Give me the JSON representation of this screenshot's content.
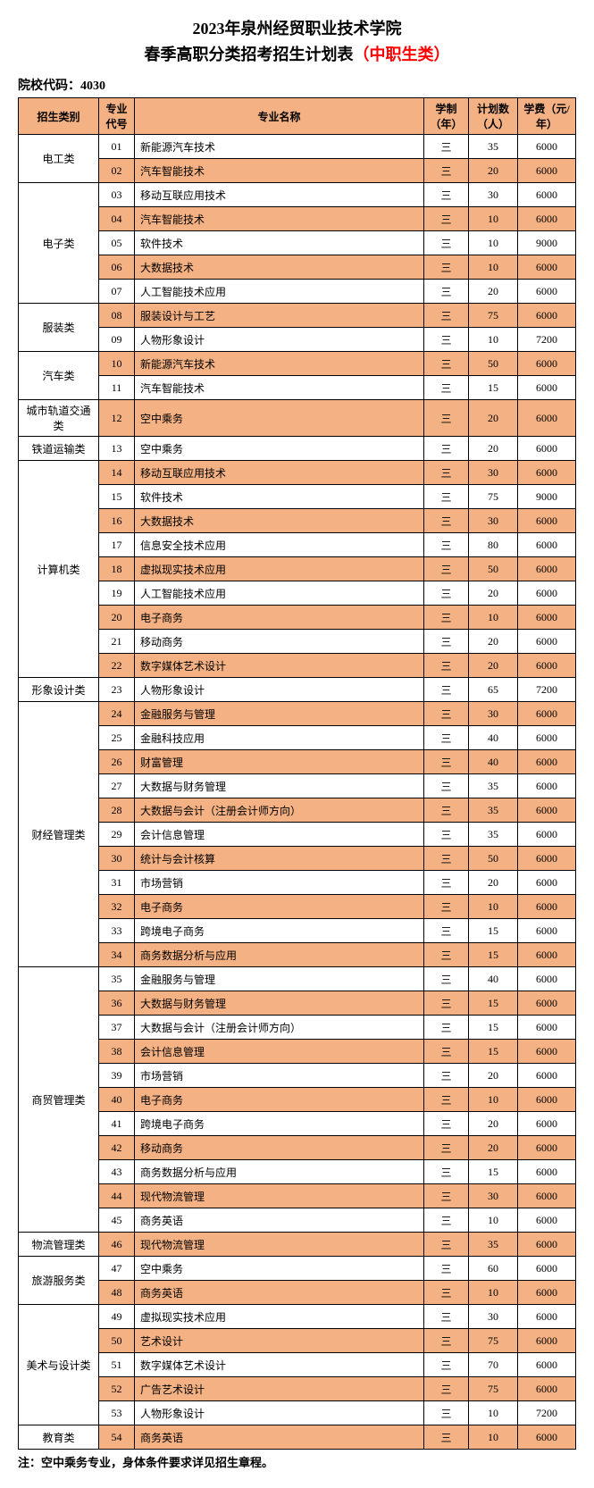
{
  "title_line1": "2023年泉州经贸职业技术学院",
  "title_line2_a": "春季高职分类招考招生计划表",
  "title_line2_b": "（中职生类）",
  "school_code_label": "院校代码：4030",
  "headers": {
    "category": "招生类别",
    "code": "专业代号",
    "name": "专业名称",
    "duration": "学制（年）",
    "plan": "计划数（人）",
    "fee": "学费（元/年）"
  },
  "categories": [
    {
      "name": "电工类",
      "rows": [
        {
          "code": "01",
          "name": "新能源汽车技术",
          "dur": "三",
          "plan": "35",
          "fee": "6000"
        },
        {
          "code": "02",
          "name": "汽车智能技术",
          "dur": "三",
          "plan": "20",
          "fee": "6000"
        }
      ]
    },
    {
      "name": "电子类",
      "rows": [
        {
          "code": "03",
          "name": "移动互联应用技术",
          "dur": "三",
          "plan": "30",
          "fee": "6000"
        },
        {
          "code": "04",
          "name": "汽车智能技术",
          "dur": "三",
          "plan": "10",
          "fee": "6000"
        },
        {
          "code": "05",
          "name": "软件技术",
          "dur": "三",
          "plan": "10",
          "fee": "9000"
        },
        {
          "code": "06",
          "name": "大数据技术",
          "dur": "三",
          "plan": "10",
          "fee": "6000"
        },
        {
          "code": "07",
          "name": "人工智能技术应用",
          "dur": "三",
          "plan": "20",
          "fee": "6000"
        }
      ]
    },
    {
      "name": "服装类",
      "rows": [
        {
          "code": "08",
          "name": "服装设计与工艺",
          "dur": "三",
          "plan": "75",
          "fee": "6000"
        },
        {
          "code": "09",
          "name": "人物形象设计",
          "dur": "三",
          "plan": "10",
          "fee": "7200"
        }
      ]
    },
    {
      "name": "汽车类",
      "rows": [
        {
          "code": "10",
          "name": "新能源汽车技术",
          "dur": "三",
          "plan": "50",
          "fee": "6000"
        },
        {
          "code": "11",
          "name": "汽车智能技术",
          "dur": "三",
          "plan": "15",
          "fee": "6000"
        }
      ]
    },
    {
      "name": "城市轨道交通类",
      "rows": [
        {
          "code": "12",
          "name": "空中乘务",
          "dur": "三",
          "plan": "20",
          "fee": "6000"
        }
      ]
    },
    {
      "name": "铁道运输类",
      "rows": [
        {
          "code": "13",
          "name": "空中乘务",
          "dur": "三",
          "plan": "20",
          "fee": "6000"
        }
      ]
    },
    {
      "name": "计算机类",
      "rows": [
        {
          "code": "14",
          "name": "移动互联应用技术",
          "dur": "三",
          "plan": "30",
          "fee": "6000"
        },
        {
          "code": "15",
          "name": "软件技术",
          "dur": "三",
          "plan": "75",
          "fee": "9000"
        },
        {
          "code": "16",
          "name": "大数据技术",
          "dur": "三",
          "plan": "30",
          "fee": "6000"
        },
        {
          "code": "17",
          "name": "信息安全技术应用",
          "dur": "三",
          "plan": "80",
          "fee": "6000"
        },
        {
          "code": "18",
          "name": "虚拟现实技术应用",
          "dur": "三",
          "plan": "50",
          "fee": "6000"
        },
        {
          "code": "19",
          "name": "人工智能技术应用",
          "dur": "三",
          "plan": "20",
          "fee": "6000"
        },
        {
          "code": "20",
          "name": "电子商务",
          "dur": "三",
          "plan": "10",
          "fee": "6000"
        },
        {
          "code": "21",
          "name": "移动商务",
          "dur": "三",
          "plan": "20",
          "fee": "6000"
        },
        {
          "code": "22",
          "name": "数字媒体艺术设计",
          "dur": "三",
          "plan": "20",
          "fee": "6000"
        }
      ]
    },
    {
      "name": "形象设计类",
      "rows": [
        {
          "code": "23",
          "name": "人物形象设计",
          "dur": "三",
          "plan": "65",
          "fee": "7200"
        }
      ]
    },
    {
      "name": "财经管理类",
      "rows": [
        {
          "code": "24",
          "name": "金融服务与管理",
          "dur": "三",
          "plan": "30",
          "fee": "6000"
        },
        {
          "code": "25",
          "name": "金融科技应用",
          "dur": "三",
          "plan": "40",
          "fee": "6000"
        },
        {
          "code": "26",
          "name": "财富管理",
          "dur": "三",
          "plan": "40",
          "fee": "6000"
        },
        {
          "code": "27",
          "name": "大数据与财务管理",
          "dur": "三",
          "plan": "35",
          "fee": "6000"
        },
        {
          "code": "28",
          "name": "大数据与会计（注册会计师方向）",
          "dur": "三",
          "plan": "35",
          "fee": "6000"
        },
        {
          "code": "29",
          "name": "会计信息管理",
          "dur": "三",
          "plan": "35",
          "fee": "6000"
        },
        {
          "code": "30",
          "name": "统计与会计核算",
          "dur": "三",
          "plan": "50",
          "fee": "6000"
        },
        {
          "code": "31",
          "name": "市场营销",
          "dur": "三",
          "plan": "20",
          "fee": "6000"
        },
        {
          "code": "32",
          "name": "电子商务",
          "dur": "三",
          "plan": "10",
          "fee": "6000"
        },
        {
          "code": "33",
          "name": "跨境电子商务",
          "dur": "三",
          "plan": "15",
          "fee": "6000"
        },
        {
          "code": "34",
          "name": "商务数据分析与应用",
          "dur": "三",
          "plan": "15",
          "fee": "6000"
        }
      ]
    },
    {
      "name": "商贸管理类",
      "rows": [
        {
          "code": "35",
          "name": "金融服务与管理",
          "dur": "三",
          "plan": "40",
          "fee": "6000"
        },
        {
          "code": "36",
          "name": "大数据与财务管理",
          "dur": "三",
          "plan": "15",
          "fee": "6000"
        },
        {
          "code": "37",
          "name": "大数据与会计（注册会计师方向）",
          "dur": "三",
          "plan": "15",
          "fee": "6000"
        },
        {
          "code": "38",
          "name": "会计信息管理",
          "dur": "三",
          "plan": "15",
          "fee": "6000"
        },
        {
          "code": "39",
          "name": "市场营销",
          "dur": "三",
          "plan": "20",
          "fee": "6000"
        },
        {
          "code": "40",
          "name": "电子商务",
          "dur": "三",
          "plan": "10",
          "fee": "6000"
        },
        {
          "code": "41",
          "name": "跨境电子商务",
          "dur": "三",
          "plan": "20",
          "fee": "6000"
        },
        {
          "code": "42",
          "name": "移动商务",
          "dur": "三",
          "plan": "20",
          "fee": "6000"
        },
        {
          "code": "43",
          "name": "商务数据分析与应用",
          "dur": "三",
          "plan": "15",
          "fee": "6000"
        },
        {
          "code": "44",
          "name": "现代物流管理",
          "dur": "三",
          "plan": "30",
          "fee": "6000"
        },
        {
          "code": "45",
          "name": "商务英语",
          "dur": "三",
          "plan": "10",
          "fee": "6000"
        }
      ]
    },
    {
      "name": "物流管理类",
      "rows": [
        {
          "code": "46",
          "name": "现代物流管理",
          "dur": "三",
          "plan": "35",
          "fee": "6000"
        }
      ]
    },
    {
      "name": "旅游服务类",
      "rows": [
        {
          "code": "47",
          "name": "空中乘务",
          "dur": "三",
          "plan": "60",
          "fee": "6000"
        },
        {
          "code": "48",
          "name": "商务英语",
          "dur": "三",
          "plan": "10",
          "fee": "6000"
        }
      ]
    },
    {
      "name": "美术与设计类",
      "rows": [
        {
          "code": "49",
          "name": "虚拟现实技术应用",
          "dur": "三",
          "plan": "30",
          "fee": "6000"
        },
        {
          "code": "50",
          "name": "艺术设计",
          "dur": "三",
          "plan": "75",
          "fee": "6000"
        },
        {
          "code": "51",
          "name": "数字媒体艺术设计",
          "dur": "三",
          "plan": "70",
          "fee": "6000"
        },
        {
          "code": "52",
          "name": "广告艺术设计",
          "dur": "三",
          "plan": "75",
          "fee": "6000"
        },
        {
          "code": "53",
          "name": "人物形象设计",
          "dur": "三",
          "plan": "10",
          "fee": "7200"
        }
      ]
    },
    {
      "name": "教育类",
      "rows": [
        {
          "code": "54",
          "name": "商务英语",
          "dur": "三",
          "plan": "10",
          "fee": "6000"
        }
      ]
    }
  ],
  "footnote": "注：空中乘务专业，身体条件要求详见招生章程。",
  "colors": {
    "header_bg": "#f4b183",
    "alt_bg": "#f4b183",
    "red": "#ff0000"
  }
}
